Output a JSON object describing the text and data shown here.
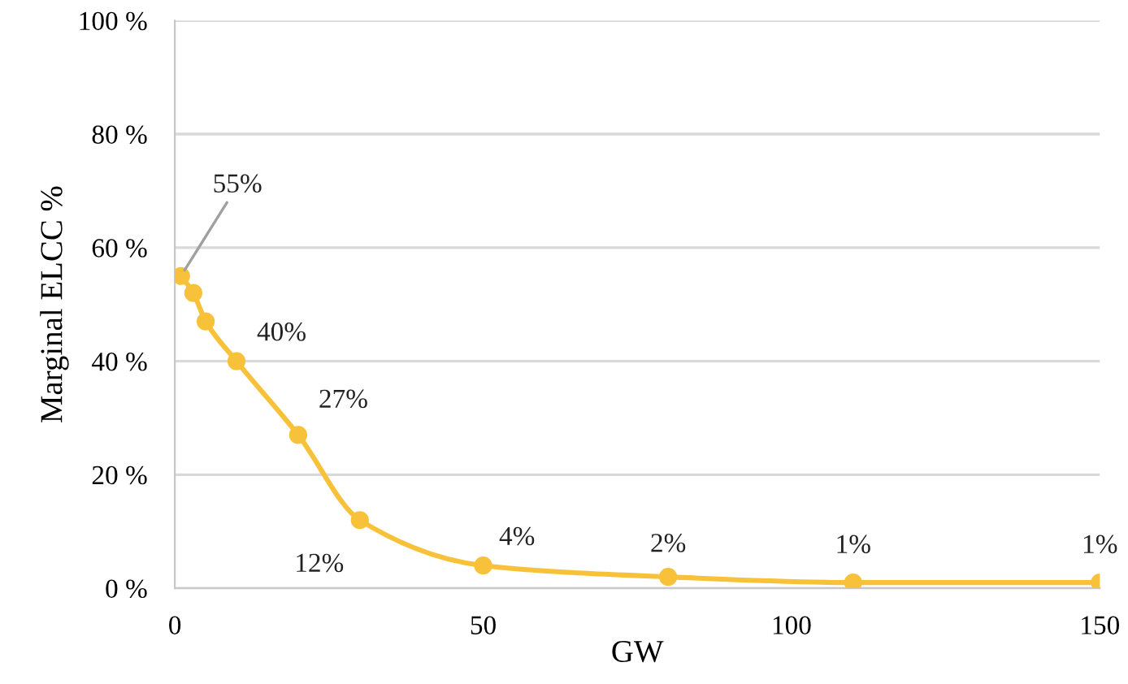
{
  "chart_data": {
    "type": "line",
    "xlabel": "GW",
    "ylabel": "Marginal ELCC %",
    "x": [
      1,
      3,
      5,
      10,
      20,
      30,
      50,
      80,
      110,
      150
    ],
    "series": [
      {
        "color": "#f7c23a",
        "values": [
          55,
          52,
          47,
          40,
          27,
          12,
          4,
          2,
          1,
          1
        ],
        "value_labels": [
          "55%",
          null,
          null,
          "40%",
          "27%",
          "12%",
          "4%",
          "2%",
          "1%",
          "1%"
        ]
      }
    ],
    "xlim": [
      0,
      150
    ],
    "xticks": [
      0,
      50,
      100,
      150
    ],
    "ylim": [
      0,
      100
    ],
    "yticks": [
      {
        "value": 0,
        "label": "0 %"
      },
      {
        "value": 20,
        "label": "20 %"
      },
      {
        "value": 40,
        "label": "40 %"
      },
      {
        "value": 60,
        "label": "60 %"
      },
      {
        "value": 80,
        "label": "80 %"
      },
      {
        "value": 100,
        "label": "100 %"
      }
    ],
    "grid": "y",
    "marker": "circle",
    "legend": false
  }
}
